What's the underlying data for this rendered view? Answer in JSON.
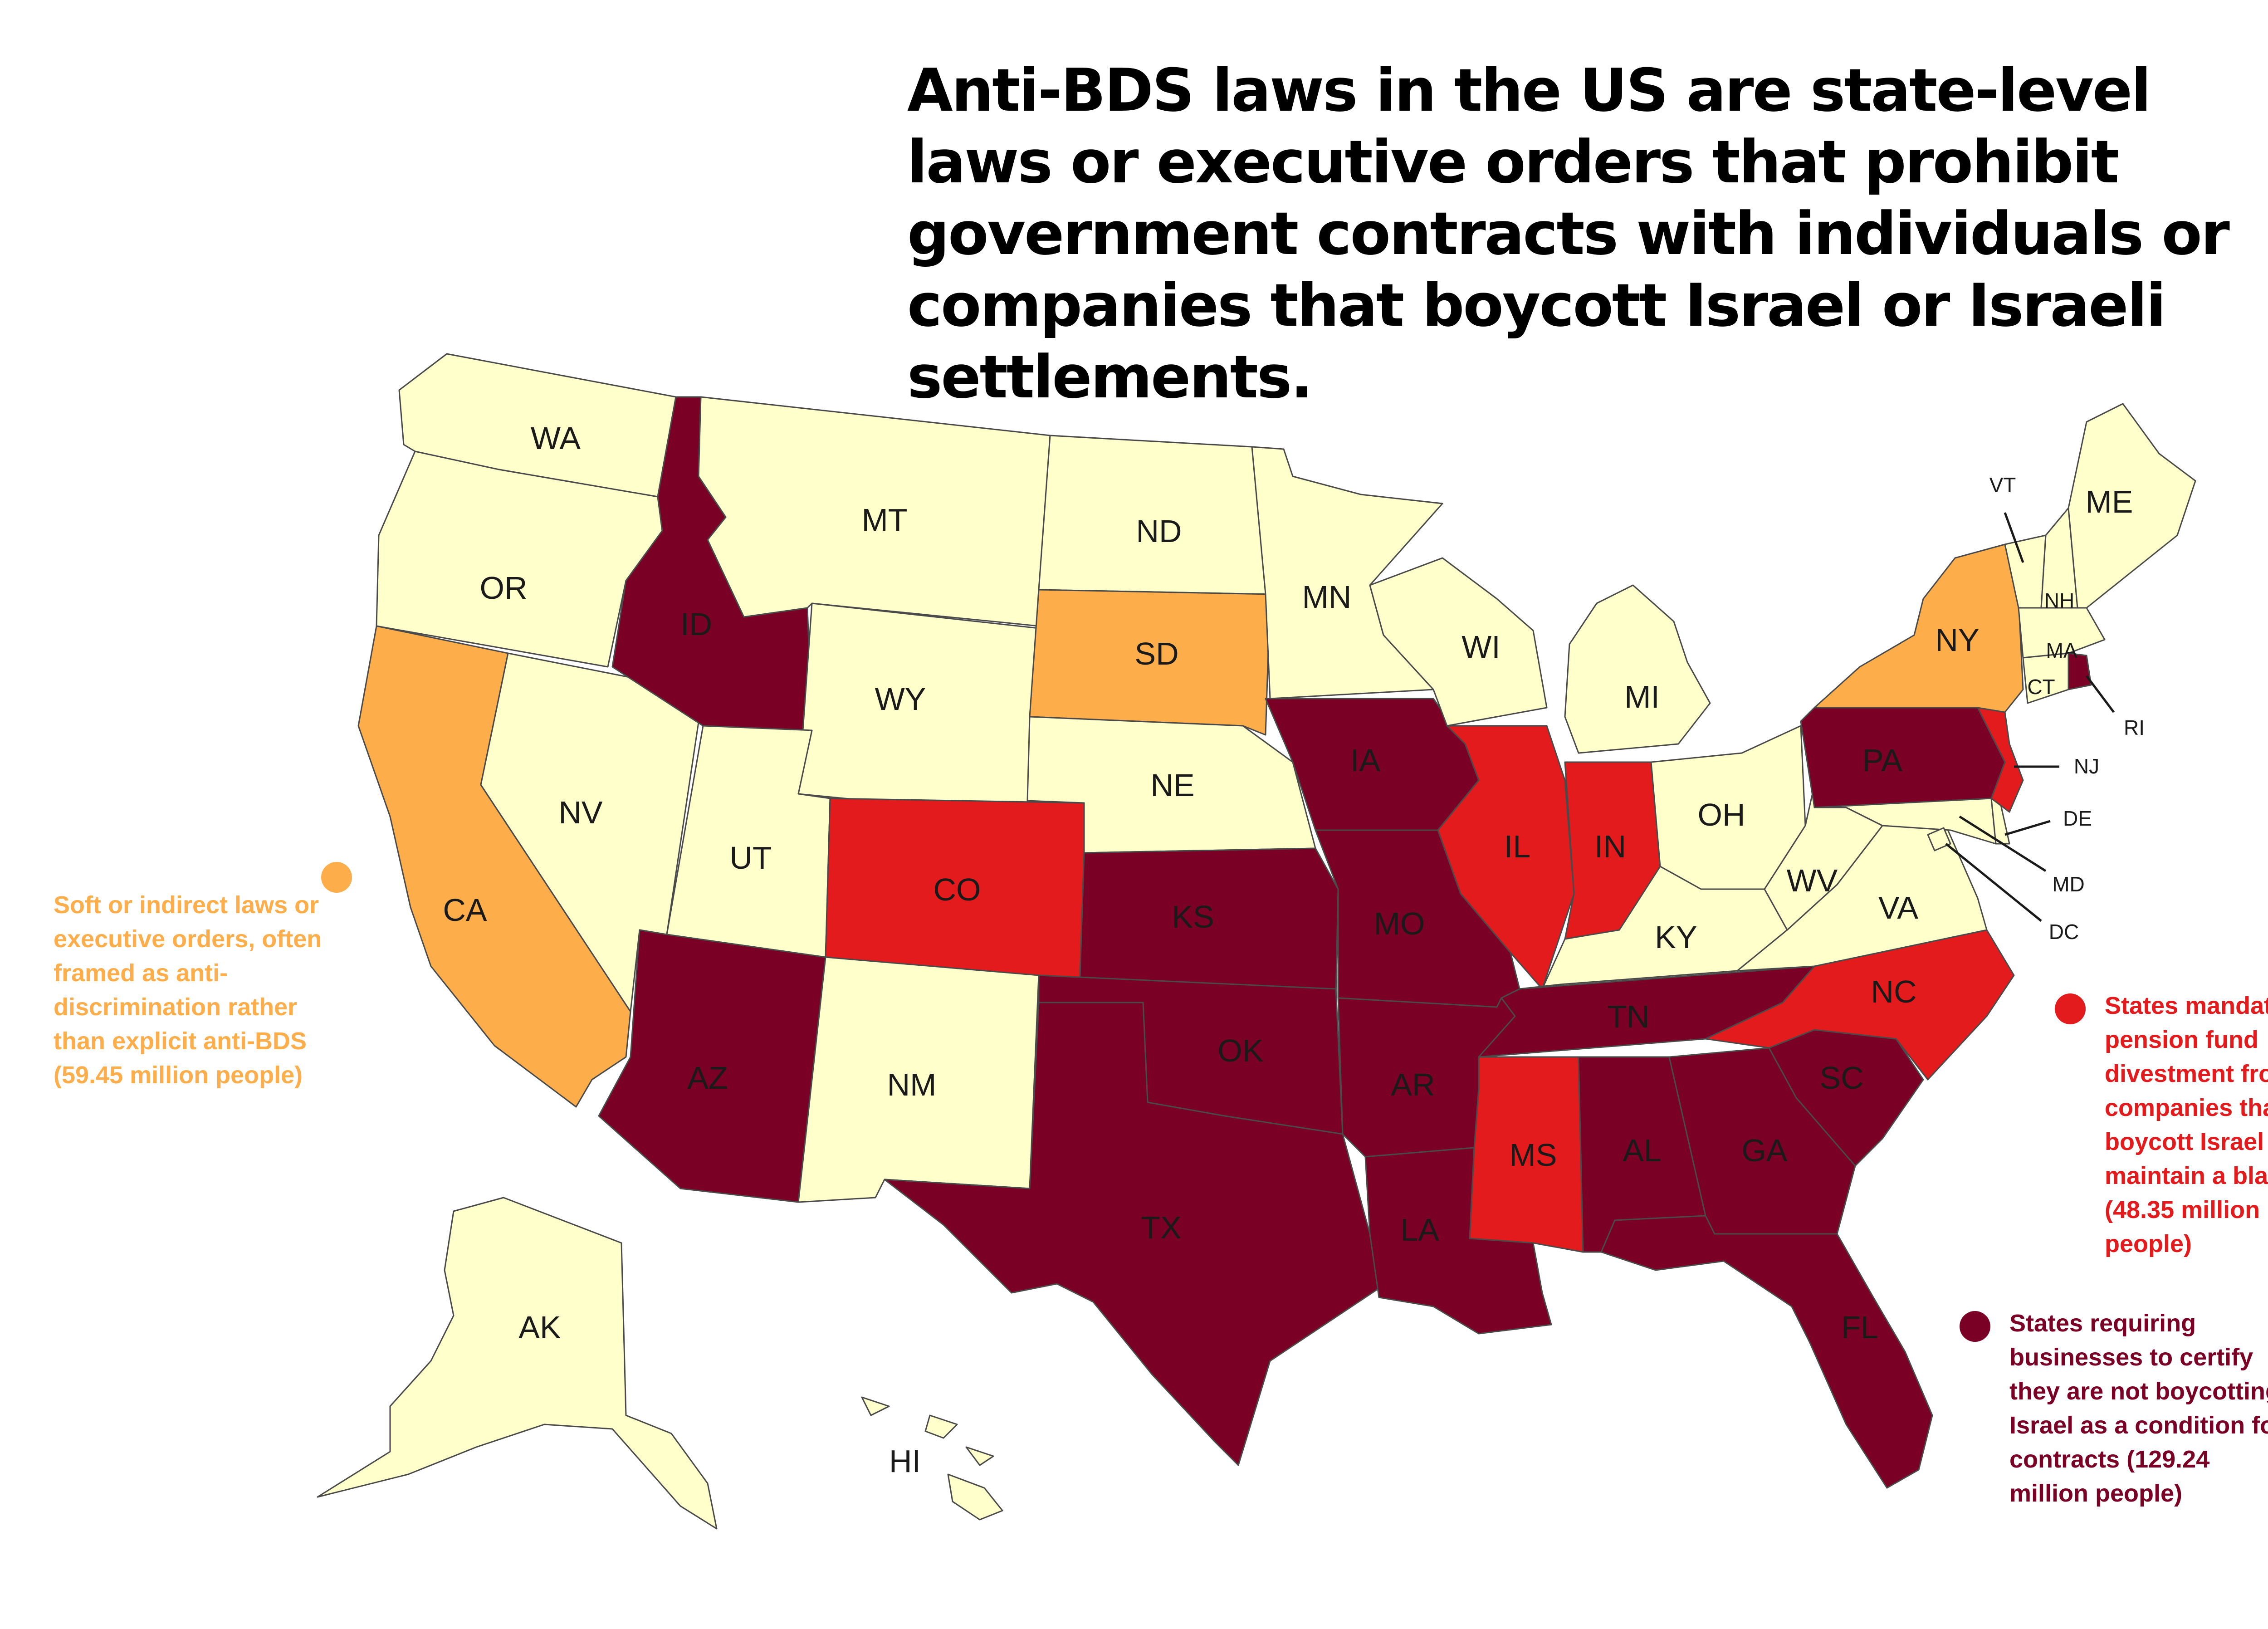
{
  "title": "Anti-BDS laws in the US are state-level laws or executive orders that prohibit government contracts with individuals or companies that boycott Israel or Israeli settlements.",
  "colors": {
    "none": "#ffffcc",
    "soft": "#fdae4b",
    "pension": "#e31b1c",
    "certify": "#7a0026"
  },
  "legend": {
    "soft": {
      "text": "Soft or indirect laws or executive orders, often framed as anti-discrimination rather than explicit anti-BDS (59.45 million people)",
      "color": "#fdae4b"
    },
    "pension": {
      "text": "States mandating pension fund divestment from companies that boycott Israel or maintain a blacklist (48.35 million people)",
      "color": "#e31b1c"
    },
    "certify": {
      "text": "States requiring businesses to certify they are not boycotting Israel as a condition for contracts (129.24 million people)",
      "color": "#7a0026"
    }
  },
  "states": {
    "WA": "none",
    "OR": "none",
    "CA": "soft",
    "NV": "none",
    "ID": "certify",
    "MT": "none",
    "WY": "none",
    "UT": "none",
    "AZ": "certify",
    "CO": "pension",
    "NM": "none",
    "ND": "none",
    "SD": "soft",
    "NE": "none",
    "KS": "certify",
    "OK": "certify",
    "TX": "certify",
    "MN": "none",
    "IA": "certify",
    "MO": "certify",
    "AR": "certify",
    "LA": "certify",
    "WI": "none",
    "IL": "pension",
    "MI": "none",
    "IN": "pension",
    "OH": "none",
    "KY": "none",
    "TN": "certify",
    "MS": "pension",
    "AL": "certify",
    "GA": "certify",
    "FL": "certify",
    "SC": "certify",
    "NC": "pension",
    "VA": "none",
    "WV": "none",
    "PA": "certify",
    "NY": "soft",
    "VT": "none",
    "NH": "none",
    "ME": "none",
    "MA": "none",
    "CT": "none",
    "RI": "certify",
    "NJ": "pension",
    "DE": "none",
    "MD": "none",
    "DC": "none",
    "AK": "none",
    "HI": "none"
  }
}
